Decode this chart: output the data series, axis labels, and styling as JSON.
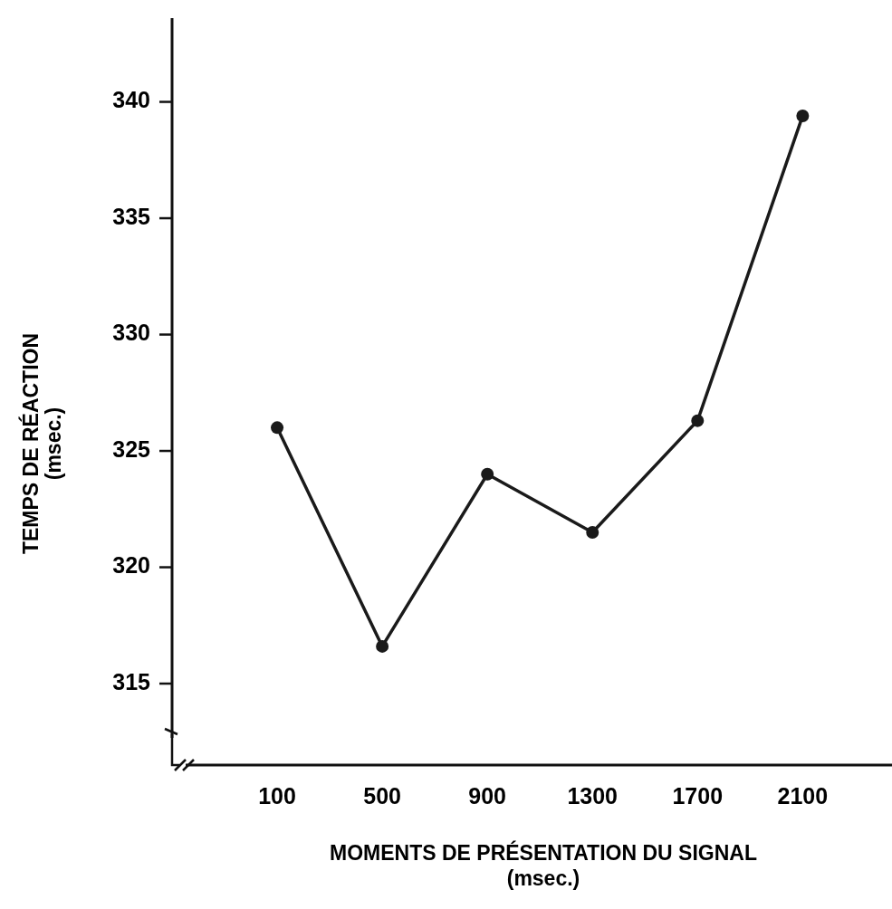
{
  "chart_data": {
    "type": "line",
    "xlabel": "MOMENTS DE PRÉSENTATION DU SIGNAL\n(msec.)",
    "ylabel": "TEMPS DE RÉACTION\n(msec.)",
    "x": [
      100,
      500,
      900,
      1300,
      1700,
      2100
    ],
    "series": [
      {
        "color": "#1a1a1a",
        "values": [
          326.0,
          316.6,
          324.0,
          321.5,
          326.3,
          339.4
        ]
      }
    ],
    "xlim": [
      -300,
      2440
    ],
    "xticks": [
      100,
      500,
      900,
      1300,
      1700,
      2100
    ],
    "ylim": [
      311.5,
      343.6
    ],
    "yticks": [
      315,
      320,
      325,
      330,
      335,
      340
    ],
    "grid": false,
    "marker": "circle",
    "line_style": "solid"
  }
}
